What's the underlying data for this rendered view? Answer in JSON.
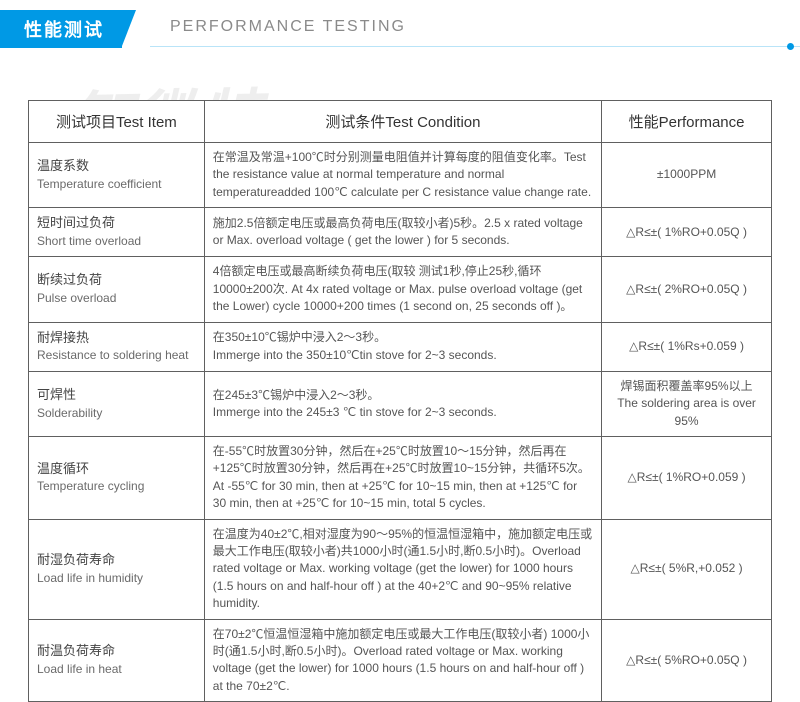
{
  "header": {
    "title_cn": "性能测试",
    "title_en": "PERFORMANCE TESTING"
  },
  "watermark": {
    "cn": "智微特",
    "url1": "www.zwtec",
    "url2": "ec.cn"
  },
  "colors": {
    "accent": "#0099e5",
    "header_line": "#b9e4f8",
    "border": "#606060",
    "text": "#555555"
  },
  "table": {
    "headers": {
      "item": "测试项目Test Item",
      "condition": "测试条件Test Condition",
      "performance": "性能Performance"
    },
    "rows": [
      {
        "item_cn": "温度系数",
        "item_en": "Temperature coefficient",
        "condition": "在常温及常温+100℃时分别测量电阻值并计算每度的阻值变化率。Test the resistance value at normal temperature and normal temperatureadded 100℃ calculate per C resistance value change rate.",
        "performance": "±1000PPM"
      },
      {
        "item_cn": "短时间过负荷",
        "item_en": "Short time overload",
        "condition": "施加2.5倍额定电压或最高负荷电压(取较小者)5秒。2.5 x rated voltage or Max. overload voltage ( get the lower ) for 5 seconds.",
        "performance": "△R≤±( 1%RO+0.05Q )"
      },
      {
        "item_cn": "断续过负荷",
        "item_en": "Pulse overload",
        "condition": "4倍额定电压或最高断续负荷电压(取较 测试1秒,停止25秒,循环10000±200次. At 4x rated voltage or Max. pulse overload voltage (get the Lower) cycle 10000+200 times (1 second on, 25 seconds off )。",
        "performance": "△R≤±( 2%RO+0.05Q )"
      },
      {
        "item_cn": "耐焊接热",
        "item_en": "Resistance to soldering heat",
        "condition": "在350±10℃锡炉中浸入2～3秒。\nImmerge into the 350±10℃tin stove for 2~3 seconds.",
        "performance": "△R≤±( 1%Rs+0.059 )"
      },
      {
        "item_cn": "可焊性",
        "item_en": "Solderability",
        "condition": "在245±3℃锡炉中浸入2～3秒。\nImmerge into the 245±3 ℃ tin stove for 2~3 seconds.",
        "performance": "焊锡面积覆盖率95%以上\nThe soldering area is over 95%"
      },
      {
        "item_cn": "温度循环",
        "item_en": "Temperature cycling",
        "condition": "在-55℃时放置30分钟，然后在+25℃时放置10～15分钟，然后再在+125℃时放置30分钟，然后再在+25℃时放置10~15分钟，共循环5次。At -55℃ for 30 min, then at +25℃ for 10~15 min, then at +125℃ for 30 min, then at +25℃ for 10~15 min, total 5 cycles.",
        "performance": "△R≤±( 1%RO+0.059 )"
      },
      {
        "item_cn": "耐湿负荷寿命",
        "item_en": "Load life in humidity",
        "condition": "在温度为40±2℃,相对湿度为90～95%的恒温恒湿箱中，施加额定电压或最大工作电压(取较小者)共1000小时(通1.5小时,断0.5小时)。Overload rated voltage or Max. working voltage (get the lower) for 1000 hours (1.5 hours on and half-hour off ) at the 40+2℃ and 90~95% relative humidity.",
        "performance": "△R≤±( 5%R,+0.052 )"
      },
      {
        "item_cn": "耐温负荷寿命",
        "item_en": "Load life in heat",
        "condition": "在70±2℃恒温恒湿箱中施加额定电压或最大工作电压(取较小者) 1000小时(通1.5小时,断0.5小时)。Overload rated voltage or Max. working voltage (get the lower) for 1000 hours (1.5 hours on and half-hour off ) at the 70±2℃.",
        "performance": "△R≤±( 5%RO+0.05Q )"
      }
    ]
  }
}
